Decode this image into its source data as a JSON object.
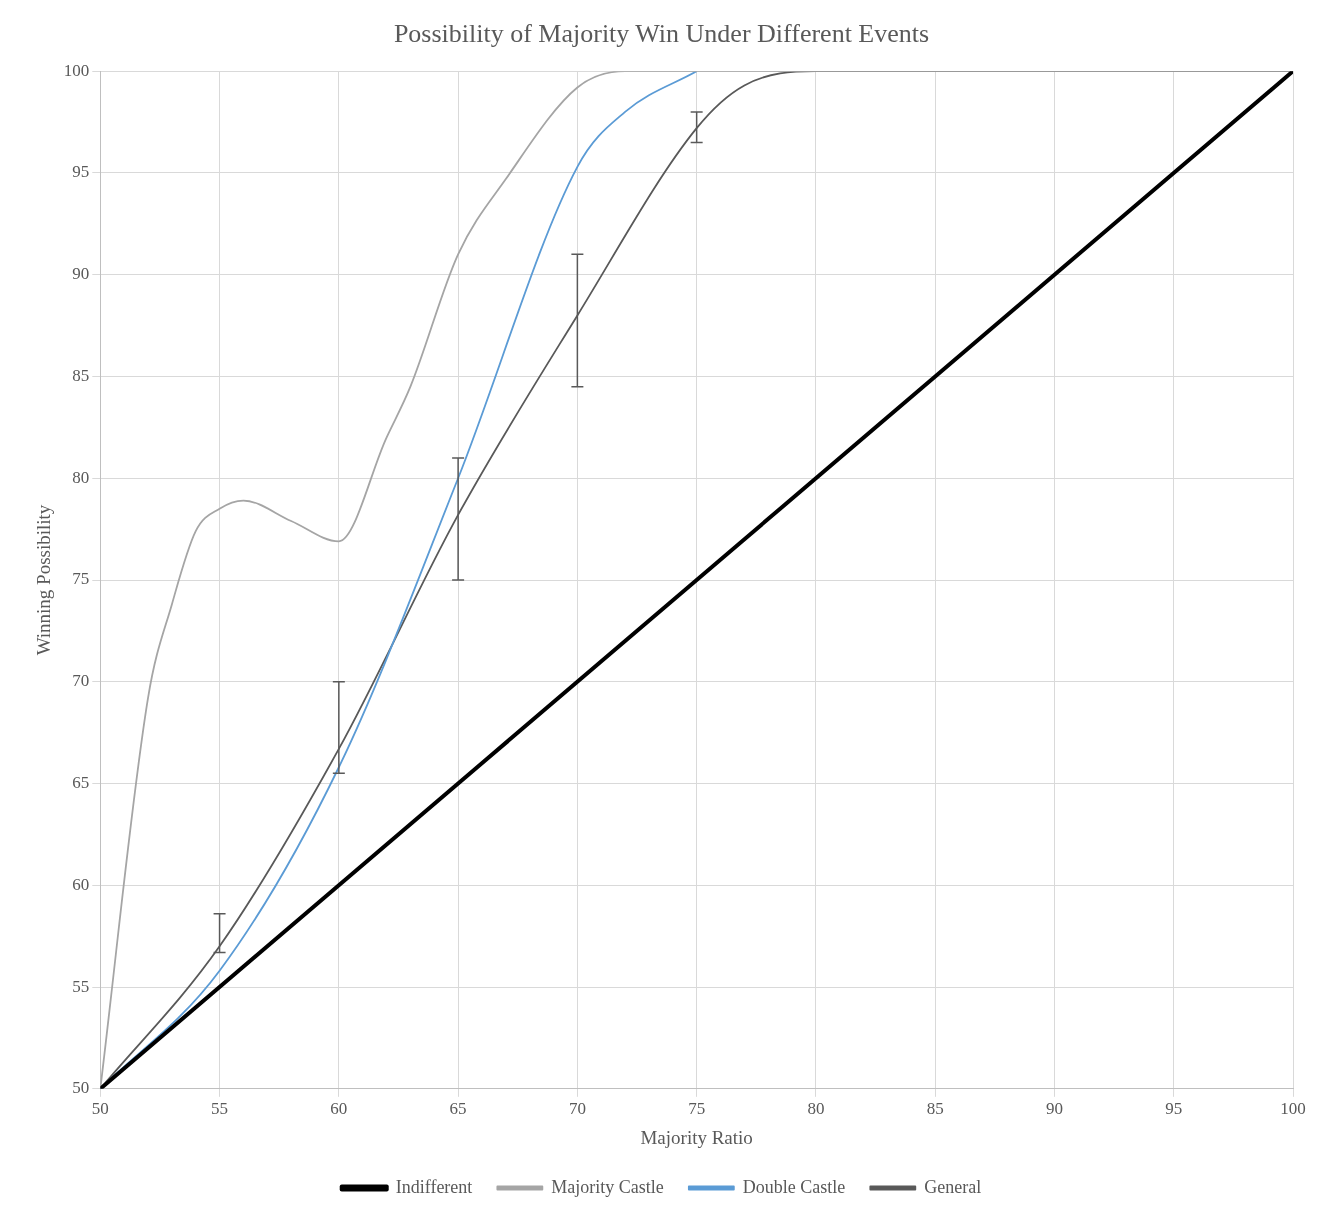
{
  "chart_data": {
    "type": "line",
    "title": "Possibility of Majority Win Under Different Events",
    "xlabel": "Majority Ratio",
    "ylabel": "Winning Possibility",
    "xlim": [
      50,
      100
    ],
    "ylim": [
      50,
      100
    ],
    "xticks": [
      50,
      55,
      60,
      65,
      70,
      75,
      80,
      85,
      90,
      95,
      100
    ],
    "yticks": [
      50,
      55,
      60,
      65,
      70,
      75,
      80,
      85,
      90,
      95,
      100
    ],
    "grid": true,
    "legend": "bottom",
    "marker": "none",
    "line_style": "solid",
    "series": [
      {
        "name": "Indifferent",
        "color": "#000000",
        "x": [
          50,
          100
        ],
        "values": [
          50,
          100
        ]
      },
      {
        "name": "Majority Castle",
        "color": "#a5a5a5",
        "x": [
          50,
          52,
          53,
          54,
          55,
          56,
          58,
          60,
          62,
          63,
          65,
          67,
          70,
          72,
          75,
          100
        ],
        "values": [
          50,
          69.2,
          73.8,
          77.4,
          78.5,
          78.9,
          77.9,
          76.9,
          82,
          84.5,
          91,
          94.7,
          99.2,
          100,
          100,
          100
        ]
      },
      {
        "name": "Double Castle",
        "color": "#5b9bd5",
        "x": [
          50,
          55,
          60,
          65,
          70,
          72,
          75
        ],
        "values": [
          50,
          55.8,
          65.8,
          80,
          95.3,
          98,
          100
        ]
      },
      {
        "name": "General",
        "color": "#595959",
        "x": [
          50,
          55,
          60,
          65,
          70,
          75,
          77,
          80,
          100
        ],
        "values": [
          50,
          57,
          66.7,
          78.2,
          88,
          97.2,
          99.3,
          100,
          100
        ],
        "errors": [
          null,
          [
            56.7,
            58.6
          ],
          [
            65.5,
            70
          ],
          [
            75,
            81
          ],
          [
            84.5,
            91
          ],
          [
            96.5,
            98
          ],
          null,
          null,
          null
        ]
      }
    ]
  }
}
